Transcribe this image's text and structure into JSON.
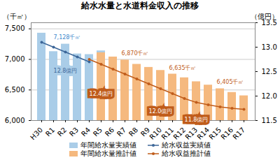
{
  "chart_data": {
    "type": "bar",
    "title": "給水水量と水道料金収入の推移",
    "categories": [
      "H30",
      "R1",
      "R2",
      "R3",
      "R4",
      "R5",
      "R6",
      "R7",
      "R8",
      "R9",
      "R10",
      "R11",
      "R12",
      "R13",
      "R14",
      "R15",
      "R16",
      "R17"
    ],
    "ylabel": "（千㎥）",
    "y2label": "（億円）",
    "ylim": [
      6000,
      7600
    ],
    "yticks": [
      {
        "value": 6000,
        "label": "6,000"
      },
      {
        "value": 6500,
        "label": "6,500"
      },
      {
        "value": 7000,
        "label": "7,000"
      },
      {
        "value": 7500,
        "label": "7,500"
      }
    ],
    "y2lim": [
      11.5,
      13.5
    ],
    "y2ticks": [
      11.5,
      {
        "value": 12,
        "label": "12.0"
      },
      12.5,
      {
        "value": 13,
        "label": "13.0"
      },
      13.5
    ],
    "grid": true,
    "legend": "bottom",
    "series": [
      {
        "name": "年間給水量実績値",
        "type": "bar",
        "color": "#aacde8",
        "values": [
          7430,
          7128,
          7250,
          7090,
          7080,
          7140,
          null,
          null,
          null,
          null,
          null,
          null,
          null,
          null,
          null,
          null,
          null,
          null
        ]
      },
      {
        "name": "年間給水量推計値",
        "type": "bar",
        "color": "#f5b97f",
        "values": [
          null,
          null,
          null,
          null,
          null,
          7110,
          7040,
          6990,
          6920,
          6870,
          6820,
          6760,
          6700,
          6635,
          6580,
          6520,
          6460,
          6405
        ]
      },
      {
        "name": "給水収益実績値",
        "type": "line",
        "marker": "circle",
        "axis": "y2",
        "color": "#3d6799",
        "values": [
          13.1,
          13.0,
          12.9,
          12.8,
          12.7,
          null,
          null,
          null,
          null,
          null,
          null,
          null,
          null,
          null,
          null,
          null,
          null,
          null
        ]
      },
      {
        "name": "給水収益推計値",
        "type": "line",
        "marker": "circle",
        "axis": "y2",
        "color": "#c05c1a",
        "values": [
          null,
          null,
          null,
          null,
          12.75,
          12.65,
          12.55,
          12.45,
          12.35,
          12.25,
          12.15,
          12.05,
          11.95,
          11.87,
          11.82,
          11.78,
          11.75,
          11.73
        ]
      }
    ],
    "annotations": [
      {
        "text": "7,128千㎥",
        "color": "#3d88cc",
        "x": "R1",
        "y": 7128
      },
      {
        "text": "6,870千㎥",
        "color": "#c05c1a",
        "x": "R9",
        "y": 6870
      },
      {
        "text": "6,635千㎥",
        "color": "#c05c1a",
        "x": "R13",
        "y": 6635
      },
      {
        "text": "6,405千㎥",
        "color": "#c05c1a",
        "x": "R17",
        "y": 6405
      },
      {
        "text": "12.8億円",
        "color": "#3d6799",
        "background": "#aacde8",
        "x": "R2",
        "y": 12.52,
        "axis": "y2"
      },
      {
        "text": "12.4億円",
        "color": "white",
        "background": "#c05c1a",
        "x": "R5",
        "y": 12.05,
        "axis": "y2"
      },
      {
        "text": "12.0億円",
        "color": "white",
        "background": "#c05c1a",
        "x": "R10",
        "y": 11.68,
        "axis": "y2"
      },
      {
        "text": "11.8億円",
        "color": "white",
        "background": "#c05c1a",
        "x": "R13",
        "y": 11.52,
        "axis": "y2"
      }
    ]
  }
}
